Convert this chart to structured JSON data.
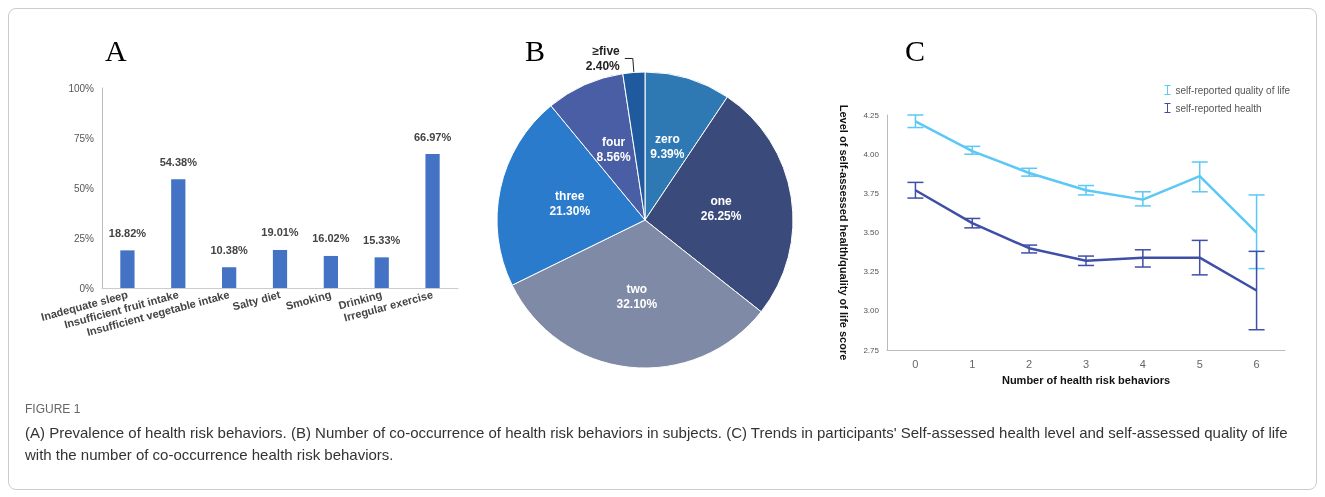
{
  "chart_data": [
    {
      "type": "bar",
      "title": "A",
      "categories": [
        "Inadequate sleep",
        "Insufficient fruit intake",
        "Insufficient vegetable intake",
        "Salty diet",
        "Smoking",
        "Drinking",
        "Irregular exercise"
      ],
      "values": [
        18.82,
        54.38,
        10.38,
        19.01,
        16.02,
        15.33,
        66.97
      ],
      "color": "#4472c4",
      "value_labels": [
        "18.82%",
        "54.38%",
        "10.38%",
        "19.01%",
        "16.02%",
        "15.33%",
        "66.97%"
      ],
      "ylim": [
        0,
        100
      ],
      "yticks": [
        {
          "value": 0,
          "label": "0%"
        },
        {
          "value": 25,
          "label": "25%"
        },
        {
          "value": 50,
          "label": "50%"
        },
        {
          "value": 75,
          "label": "75%"
        },
        {
          "value": 100,
          "label": "100%"
        }
      ],
      "grid": false,
      "legend": false,
      "annotations": [
        "FIGURE 1",
        "(A) Prevalence of health risk behaviors. (B) Number of co-occurrence of health risk behaviors in subjects. (C) Trends in participants' Self-assessed health level and self-assessed quality of life with the number of co-occurrence health risk behaviors."
      ]
    },
    {
      "type": "pie",
      "title": "B",
      "categories": [
        "zero",
        "one",
        "two",
        "three",
        "four",
        "≥five"
      ],
      "values": [
        9.39,
        26.25,
        32.1,
        21.3,
        8.56,
        2.4
      ],
      "value_labels": [
        "9.39%",
        "26.25%",
        "32.10%",
        "21.30%",
        "8.56%",
        "2.40%"
      ],
      "colors": [
        "#2e78b4",
        "#3a4a7a",
        "#7f8aa6",
        "#2b7bcd",
        "#4a5ea6",
        "#1f5a9e"
      ],
      "legend": false
    },
    {
      "type": "line",
      "title": "C",
      "xlabel": "Number of health risk behaviors",
      "ylabel": "Level of self-assessed health/quality of life score",
      "categories": [
        "0",
        "1",
        "2",
        "3",
        "4",
        "5",
        "6"
      ],
      "series": [
        {
          "name": "self-reported quality of life",
          "color": "#5bc8f5",
          "values": [
            4.21,
            4.02,
            3.88,
            3.77,
            3.71,
            3.86,
            3.5
          ],
          "errors": [
            [
              4.17,
              4.25
            ],
            [
              4.0,
              4.05
            ],
            [
              3.86,
              3.91
            ],
            [
              3.74,
              3.8
            ],
            [
              3.67,
              3.76
            ],
            [
              3.76,
              3.95
            ],
            [
              3.27,
              3.74
            ]
          ]
        },
        {
          "name": "self-reported health",
          "color": "#3f4fa8",
          "values": [
            3.77,
            3.56,
            3.4,
            3.32,
            3.34,
            3.34,
            3.13
          ],
          "errors": [
            [
              3.72,
              3.82
            ],
            [
              3.53,
              3.59
            ],
            [
              3.37,
              3.42
            ],
            [
              3.29,
              3.35
            ],
            [
              3.28,
              3.39
            ],
            [
              3.23,
              3.45
            ],
            [
              2.88,
              3.38
            ]
          ]
        }
      ],
      "ylim": [
        2.75,
        4.25
      ],
      "yticks": [
        2.75,
        {
          "value": 3,
          "label": "3.00"
        },
        3.25,
        {
          "value": 3.5,
          "label": "3.50"
        },
        3.75,
        {
          "value": 4,
          "label": "4.00"
        },
        4.25
      ],
      "grid": false,
      "legend": "top right",
      "marker": "none",
      "line_style": "solid"
    }
  ]
}
